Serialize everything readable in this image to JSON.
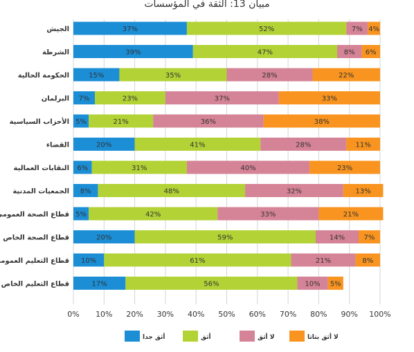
{
  "chart_data": {
    "type": "bar",
    "orientation": "horizontal",
    "stacked": true,
    "title": "مبيان 13: الثقة في المؤسسات",
    "categories": [
      "الجيش",
      "الشرطة",
      "الحكومة الحالية",
      "البرلمان",
      "الأحزاب السياسية",
      "القضاء",
      "النقابات العمالية",
      "الجمعيات المدنية",
      "قطاع الصحة العمومي",
      "قطاع الصحة الخاص",
      "قطاع التعليم العمومي",
      "قطاع التعليم الخاص"
    ],
    "series": [
      {
        "name": "أثق جدا",
        "color": "#1b8ed6",
        "values": [
          37,
          39,
          15,
          7,
          5,
          20,
          6,
          8,
          5,
          20,
          10,
          17
        ]
      },
      {
        "name": "أثق",
        "color": "#b2d235",
        "values": [
          52,
          47,
          35,
          23,
          21,
          41,
          31,
          48,
          42,
          59,
          61,
          56
        ]
      },
      {
        "name": "لا أثق",
        "color": "#d58396",
        "values": [
          7,
          8,
          28,
          37,
          36,
          28,
          40,
          32,
          33,
          14,
          21,
          10
        ]
      },
      {
        "name": "لا أثق بتاتا",
        "color": "#f8941f",
        "values": [
          4,
          6,
          22,
          33,
          38,
          11,
          23,
          13,
          21,
          7,
          8,
          5
        ]
      }
    ],
    "value_format": "{v}%",
    "xlim": [
      0,
      100
    ],
    "xticks": [
      "0%",
      "10%",
      "20%",
      "30%",
      "40%",
      "50%",
      "60%",
      "70%",
      "80%",
      "90%",
      "100%"
    ],
    "grid": true,
    "legend_position": "bottom"
  }
}
